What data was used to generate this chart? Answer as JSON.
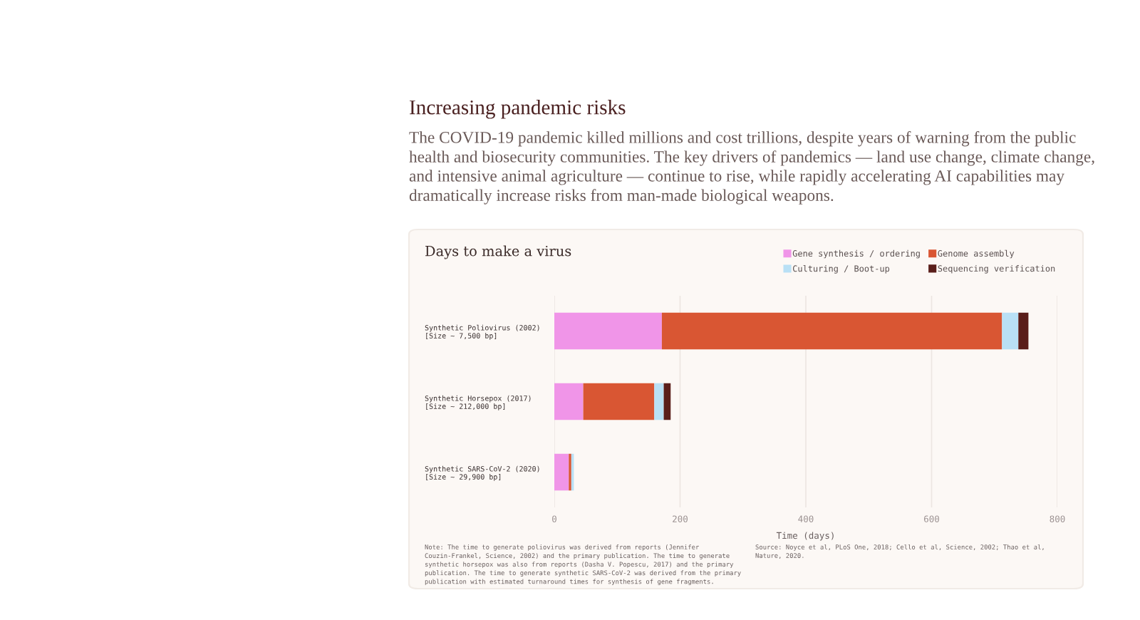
{
  "chart_data": {
    "type": "bar",
    "orientation": "horizontal",
    "stacked": true,
    "title": "Days to make a virus",
    "categories": [
      "Synthetic Poliovirus (2002)\n[Size ~ 7,500 bp]",
      "Synthetic Horsepox (2017)\n[Size ~ 212,000 bp]",
      "Synthetic SARS-CoV-2 (2020)\n[Size ~ 29,900 bp]"
    ],
    "series": [
      {
        "name": "Gene synthesis / ordering",
        "color": "#f095e8",
        "values": [
          171,
          46,
          23
        ]
      },
      {
        "name": "Genome assembly",
        "color": "#d95633",
        "values": [
          541,
          113,
          4
        ]
      },
      {
        "name": "Culturing / Boot-up",
        "color": "#b9e0f5",
        "values": [
          26,
          15,
          4
        ]
      },
      {
        "name": "Sequencing verification",
        "color": "#5a1e1a",
        "values": [
          16,
          11,
          null
        ]
      }
    ],
    "xlabel": "Time (days)",
    "xlim": [
      0,
      800
    ],
    "xticks": [
      0,
      200,
      400,
      600,
      800
    ],
    "grid": "x",
    "legend": "top right",
    "annotations": [
      "Increasing pandemic risks",
      "The COVID-19 pandemic killed millions and cost trillions, despite years of warning from the public health and biosecurity communities. The key drivers of pandemics — land use change, climate change, and intensive animal agriculture — continue to rise, while rapidly accelerating AI capabilities may dramatically increase risks from man-made biological weapons.",
      "Note: The time to generate poliovirus was derived from reports (Jennifer Couzin-Frankel, Science, 2002) and the primary publication. The time to generate synthetic horsepox was also from reports (Dasha V. Popescu, 2017) and the primary publication. The time to generate synthetic SARS-CoV-2 was derived from the primary publication with estimated turnaround times for synthesis of gene fragments.",
      "Source: Noyce et al, PLoS One, 2018; Cello et al, Science, 2002; Thao et al, Nature, 2020."
    ]
  }
}
